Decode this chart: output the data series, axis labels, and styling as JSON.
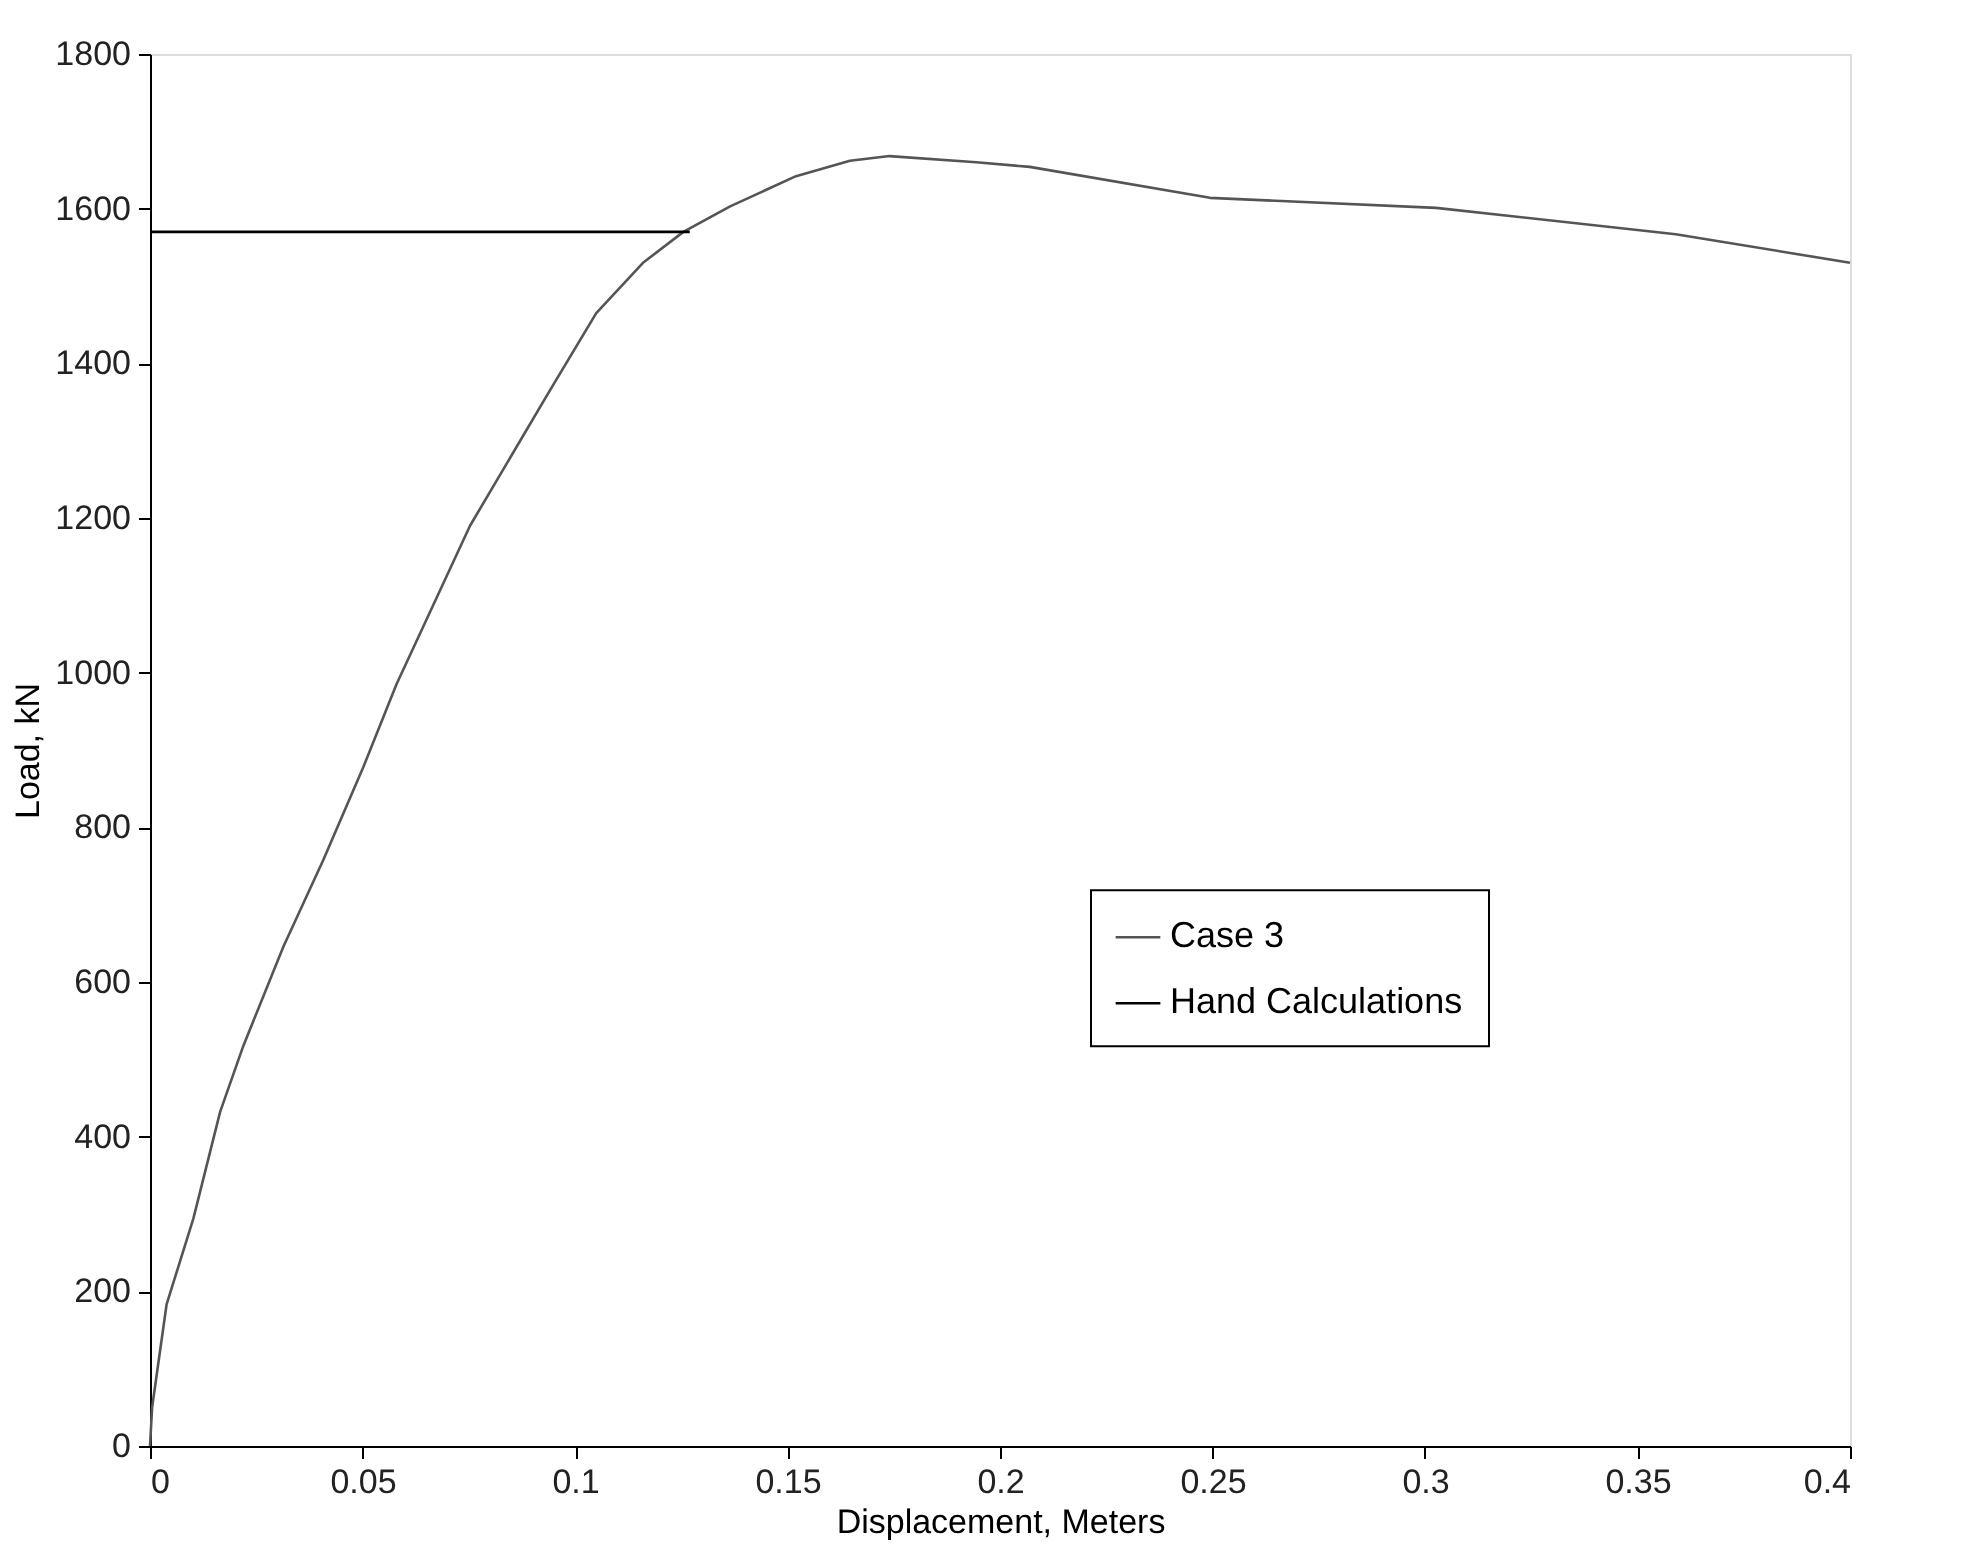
{
  "chart_data": {
    "type": "line",
    "xlabel": "Displacement, Meters",
    "ylabel": "Load, kN",
    "xlim": [
      0,
      0.4
    ],
    "xticks": [
      0,
      0.05,
      0.1,
      0.15,
      0.2,
      0.25,
      0.3,
      0.35,
      0.4
    ],
    "ylim": [
      0,
      1800
    ],
    "yticks": [
      0,
      200,
      400,
      600,
      800,
      1000,
      1200,
      1400,
      1600,
      1800
    ],
    "grid": false,
    "legend": "right",
    "line_style": "solid",
    "marker": "none",
    "series": [
      {
        "name": "Case 3",
        "color": "#555555",
        "x": [
          0,
          0.0005,
          0.0039,
          0.0102,
          0.0165,
          0.022,
          0.0314,
          0.0408,
          0.0502,
          0.058,
          0.0753,
          0.0941,
          0.105,
          0.116,
          0.1255,
          0.1365,
          0.152,
          0.1647,
          0.174,
          0.1944,
          0.207,
          0.2494,
          0.3026,
          0.359,
          0.4
        ],
        "values": [
          0,
          50,
          183,
          294,
          432,
          518,
          646,
          758,
          878,
          985,
          1190,
          1365,
          1465,
          1530,
          1570,
          1603,
          1642,
          1662,
          1668,
          1660,
          1654,
          1614,
          1601,
          1567,
          1530
        ]
      },
      {
        "name": "Hand Calculations",
        "color": "#000000",
        "x": [
          0,
          0.127
        ],
        "values": [
          1570,
          1570
        ]
      }
    ]
  }
}
